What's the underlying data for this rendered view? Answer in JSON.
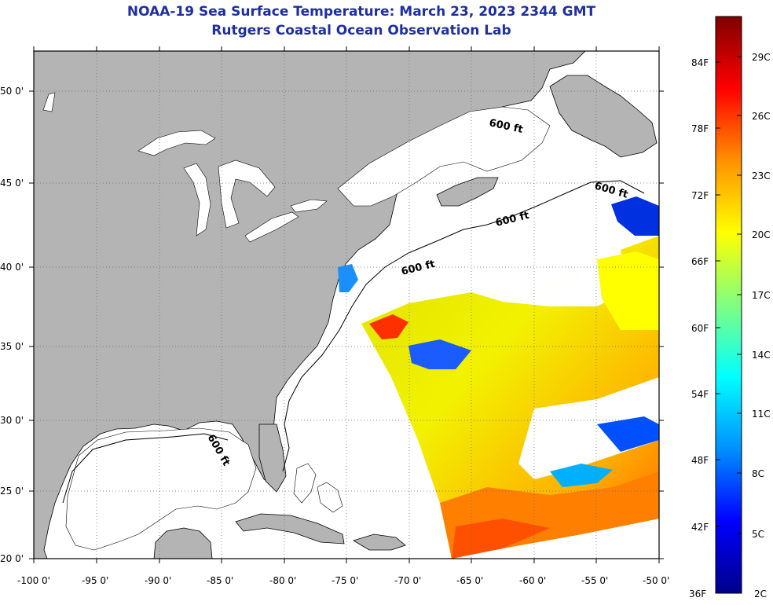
{
  "title": "NOAA-19 Sea Surface Temperature:  March 23, 2023 2344 GMT",
  "subtitle": "Rutgers Coastal Ocean Observation Lab",
  "map": {
    "lon_range": [
      -100,
      -50
    ],
    "lat_range": [
      20,
      52
    ],
    "lon_labels": [
      "-100 0'",
      "-95 0'",
      "-90 0'",
      "-85 0'",
      "-80 0'",
      "-75 0'",
      "-70 0'",
      "-65 0'",
      "-60 0'",
      "-55 0'",
      "-50 0'"
    ],
    "lat_labels": [
      "50 0'",
      "45 0'",
      "40 0'",
      "35 0'",
      "30 0'",
      "25 0'",
      "20 0'"
    ],
    "contour_labels": [
      "600 ft",
      "600 ft",
      "600 ft",
      "600 ft",
      "600 ft"
    ],
    "colors": {
      "land": "#b4b4b4",
      "ocean": "#ffffff",
      "frame": "#000000"
    }
  },
  "colorbar": {
    "fahrenheit": [
      "84F",
      "78F",
      "72F",
      "66F",
      "60F",
      "54F",
      "48F",
      "42F",
      "36F"
    ],
    "celsius": [
      "29C",
      "26C",
      "23C",
      "20C",
      "17C",
      "14C",
      "11C",
      "8C",
      "5C",
      "2C"
    ],
    "stops": [
      "#00008a",
      "#0000ff",
      "#0090ff",
      "#00ffff",
      "#80ff80",
      "#ffff00",
      "#ff9000",
      "#ff0000",
      "#800000"
    ]
  }
}
